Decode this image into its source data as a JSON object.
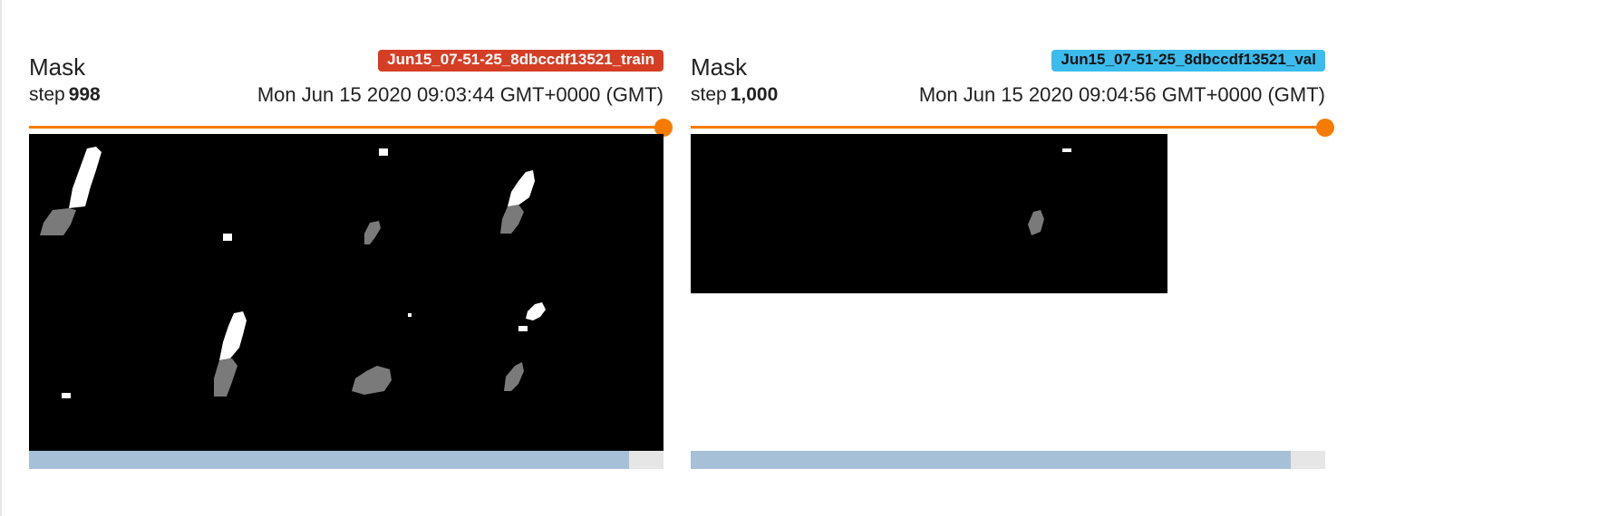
{
  "cards": [
    {
      "title": "Mask",
      "run": "Jun15_07-51-25_8dbccdf13521_train",
      "step_label": "step",
      "step_value": "998",
      "timestamp": "Mon Jun 15 2020 09:03:44 GMT+0000 (GMT)",
      "step_slider_fraction": 1.0,
      "scroll_thumb_fraction": 0.945,
      "colors": {
        "badge": "#d53e25",
        "slider": "#f57c00",
        "scrollbar": "#a6c0d8"
      }
    },
    {
      "title": "Mask",
      "run": "Jun15_07-51-25_8dbccdf13521_val",
      "step_label": "step",
      "step_value": "1,000",
      "timestamp": "Mon Jun 15 2020 09:04:56 GMT+0000 (GMT)",
      "step_slider_fraction": 1.0,
      "scroll_thumb_fraction": 0.945,
      "colors": {
        "badge": "#3bbcec",
        "slider": "#f57c00",
        "scrollbar": "#a6c0d8"
      }
    }
  ]
}
